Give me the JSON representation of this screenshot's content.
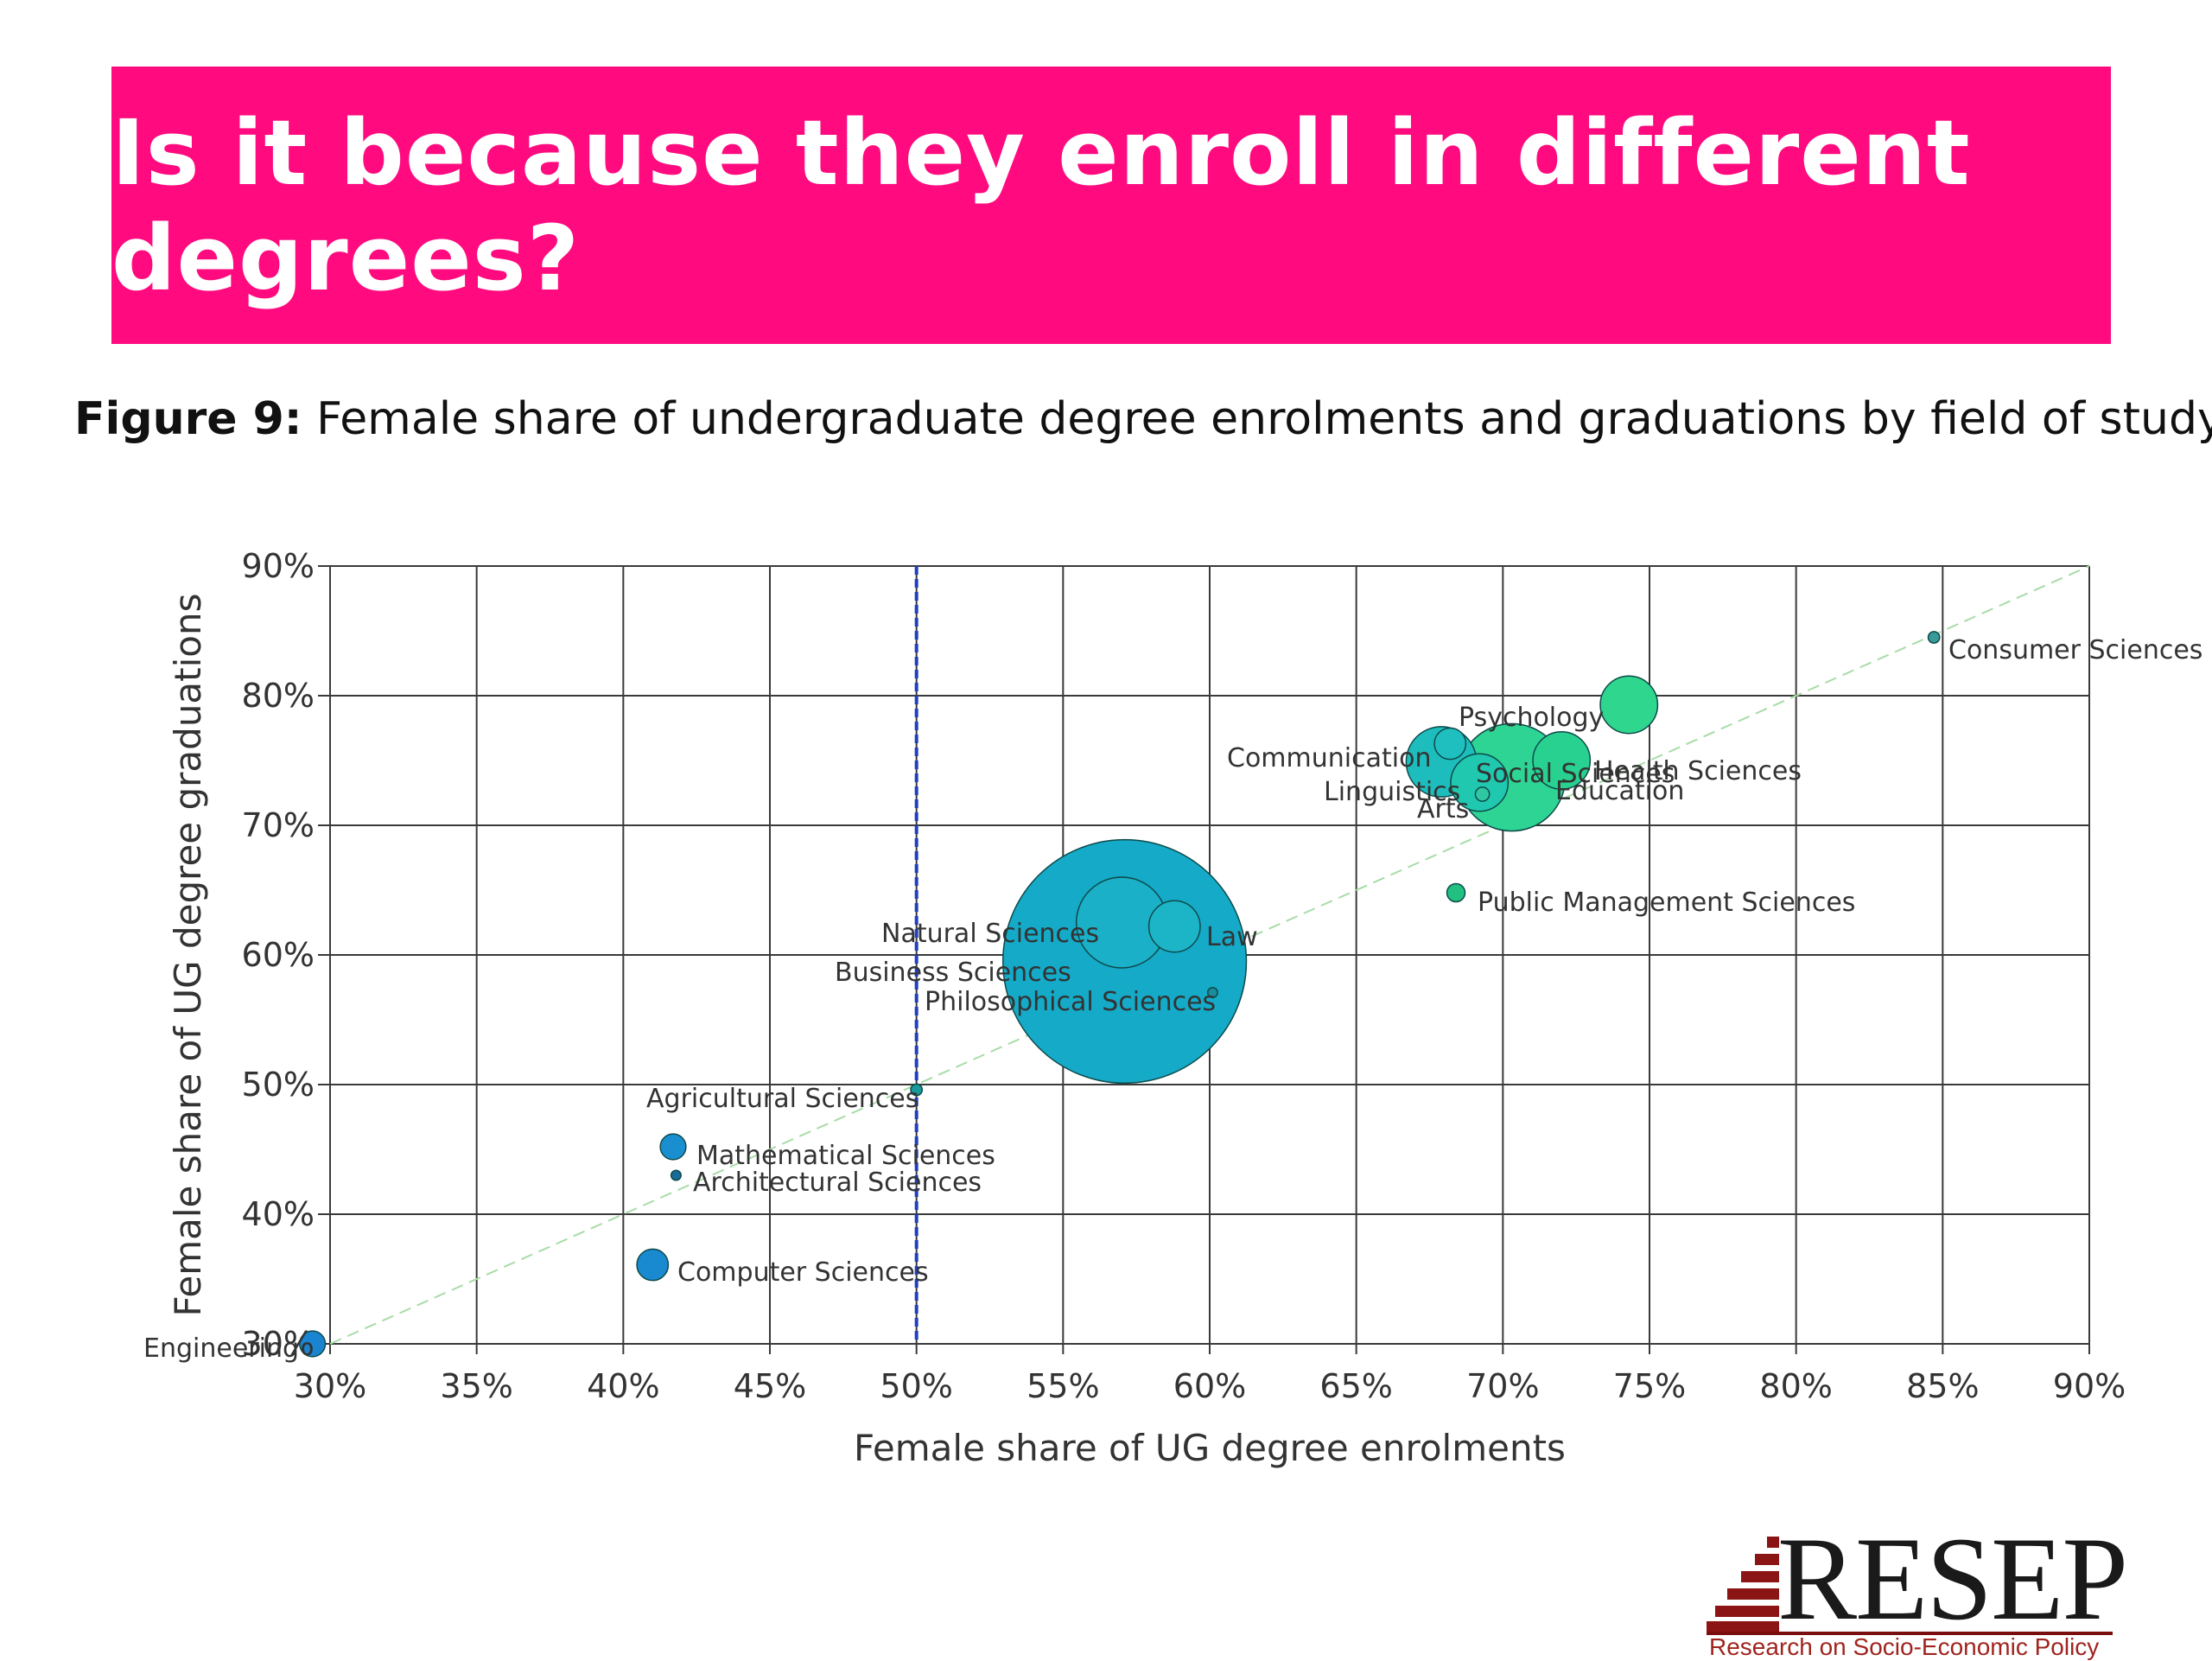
{
  "banner": {
    "title": "Is it because they enroll in different degrees?",
    "color": "#ff0a7f"
  },
  "caption": {
    "lead": "Figure 9:",
    "text": " Female share of undergraduate degree enrolments and graduations by field of study"
  },
  "chart_data": {
    "type": "scatter",
    "variant": "bubble",
    "title": "",
    "xlabel": "Female share of UG degree enrolments",
    "ylabel": "Female share of UG degree graduations",
    "xlim": [
      30,
      90
    ],
    "ylim": [
      30,
      90
    ],
    "x_ticks": [
      "30%",
      "35%",
      "40%",
      "45%",
      "50%",
      "55%",
      "60%",
      "65%",
      "70%",
      "75%",
      "80%",
      "85%",
      "90%"
    ],
    "y_ticks": [
      "30%",
      "40%",
      "50%",
      "60%",
      "70%",
      "80%",
      "90%"
    ],
    "grid": true,
    "reference_line": {
      "x": 50,
      "style": "dashed",
      "color": "#1f3fbf"
    },
    "diagonal": {
      "from": [
        30,
        30
      ],
      "to": [
        90,
        90
      ],
      "style": "dashed",
      "color": "#a8dca8"
    },
    "points": [
      {
        "label": "Consumer Sciences",
        "x": 84.7,
        "y": 84.5,
        "size": 0.4,
        "color": "#3a9a9a"
      },
      {
        "label": "Psychology",
        "x": 74.3,
        "y": 79.3,
        "size": 10,
        "color": "#2ed68e"
      },
      {
        "label": "Communication",
        "x": 68.2,
        "y": 76.3,
        "size": 3,
        "color": "#1fbfc0"
      },
      {
        "label": "Health Sciences",
        "x": 72.0,
        "y": 75.0,
        "size": 10,
        "color": "#28d18f"
      },
      {
        "label": "Linguistics",
        "x": 67.9,
        "y": 74.9,
        "size": 15,
        "color": "#1ebdbd"
      },
      {
        "label": "Social Sciences",
        "x": 70.3,
        "y": 73.7,
        "size": 35,
        "color": "#2ed493"
      },
      {
        "label": "Education",
        "x": 69.2,
        "y": 73.3,
        "size": 10,
        "color": "#20c8b0"
      },
      {
        "label": "Arts",
        "x": 69.3,
        "y": 72.4,
        "size": 0.6,
        "color": "#2fc7a2"
      },
      {
        "label": "Public Management Sciences",
        "x": 68.4,
        "y": 64.8,
        "size": 1,
        "color": "#22c080"
      },
      {
        "label": "Law",
        "x": 58.8,
        "y": 62.2,
        "size": 8,
        "color": "#1cb5c8"
      },
      {
        "label": "Natural Sciences",
        "x": 57.0,
        "y": 62.5,
        "size": 25,
        "color": "#1ab0c8"
      },
      {
        "label": "Business Sciences",
        "x": 57.1,
        "y": 59.5,
        "size": 180,
        "color": "#14aac8"
      },
      {
        "label": "Philosophical Sciences",
        "x": 60.1,
        "y": 57.1,
        "size": 0.3,
        "color": "#1a8c9a"
      },
      {
        "label": "Agricultural Sciences",
        "x": 50.0,
        "y": 49.6,
        "size": 0.4,
        "color": "#1a9a9a"
      },
      {
        "label": "Mathematical Sciences",
        "x": 41.7,
        "y": 45.2,
        "size": 2,
        "color": "#1a8fd0"
      },
      {
        "label": "Architectural Sciences",
        "x": 41.8,
        "y": 43.0,
        "size": 0.3,
        "color": "#1a6a9a"
      },
      {
        "label": "Computer Sciences",
        "x": 41.0,
        "y": 36.1,
        "size": 3,
        "color": "#1a8ad0"
      },
      {
        "label": "Engineering",
        "x": 29.4,
        "y": 30.0,
        "size": 2,
        "color": "#1a84d0"
      }
    ]
  },
  "logo": {
    "text": "RESEP",
    "subtitle": "Research on Socio-Economic Policy"
  }
}
